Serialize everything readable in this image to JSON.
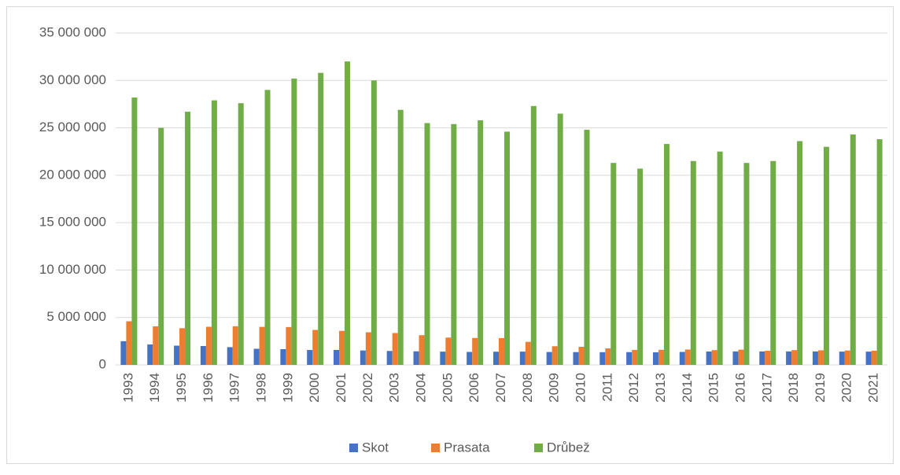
{
  "chart_data": {
    "type": "bar",
    "categories": [
      "1993",
      "1994",
      "1995",
      "1996",
      "1997",
      "1998",
      "1999",
      "2000",
      "2001",
      "2002",
      "2003",
      "2004",
      "2005",
      "2006",
      "2007",
      "2008",
      "2009",
      "2010",
      "2011",
      "2012",
      "2013",
      "2014",
      "2015",
      "2016",
      "2017",
      "2018",
      "2019",
      "2020",
      "2021"
    ],
    "series": [
      {
        "name": "Skot",
        "color": "#4472c4",
        "values": [
          2500000,
          2160000,
          2030000,
          1990000,
          1870000,
          1700000,
          1660000,
          1570000,
          1580000,
          1520000,
          1470000,
          1430000,
          1400000,
          1370000,
          1390000,
          1400000,
          1360000,
          1350000,
          1340000,
          1350000,
          1330000,
          1370000,
          1410000,
          1420000,
          1420000,
          1420000,
          1420000,
          1400000,
          1400000
        ]
      },
      {
        "name": "Prasata",
        "color": "#ed7d31",
        "values": [
          4600000,
          4070000,
          3870000,
          4020000,
          4080000,
          4010000,
          3990000,
          3690000,
          3590000,
          3440000,
          3360000,
          3130000,
          2880000,
          2840000,
          2830000,
          2430000,
          1970000,
          1910000,
          1750000,
          1580000,
          1590000,
          1620000,
          1560000,
          1610000,
          1490000,
          1560000,
          1540000,
          1520000,
          1500000
        ]
      },
      {
        "name": "Drůbež",
        "color": "#70ad47",
        "values": [
          28200000,
          25000000,
          26700000,
          27900000,
          27600000,
          29000000,
          30200000,
          30800000,
          32000000,
          30000000,
          26900000,
          25500000,
          25400000,
          25800000,
          24600000,
          27300000,
          26500000,
          24800000,
          21300000,
          20700000,
          23300000,
          21500000,
          22500000,
          21300000,
          21500000,
          23600000,
          23000000,
          24300000,
          23800000
        ]
      }
    ],
    "ylim": [
      0,
      35000000
    ],
    "yticks": [
      0,
      {
        "value": 5000000,
        "label": "5 000 000"
      },
      {
        "value": 10000000,
        "label": "10 000 000"
      },
      {
        "value": 15000000,
        "label": "15 000 000"
      },
      {
        "value": 20000000,
        "label": "20 000 000"
      },
      {
        "value": 25000000,
        "label": "25 000 000"
      },
      {
        "value": 30000000,
        "label": "30 000 000"
      },
      {
        "value": 35000000,
        "label": "35 000 000"
      }
    ],
    "grid": true,
    "legend": "bottom"
  }
}
